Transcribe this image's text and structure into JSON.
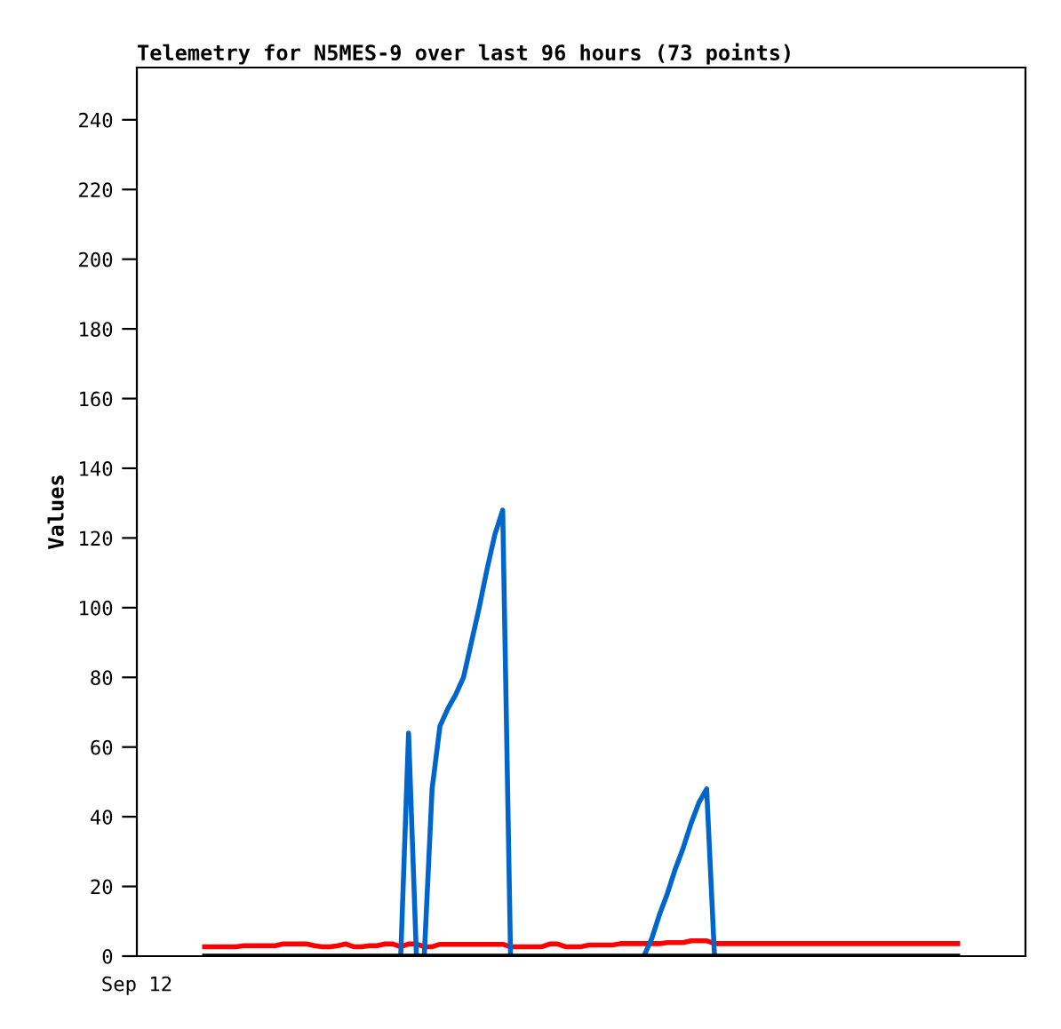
{
  "chart_data": {
    "type": "line",
    "title": "Telemetry for N5MES-9 over last 96 hours (73 points)",
    "ylabel": "Values",
    "annotations": [
      "Sep 12"
    ],
    "ylim": [
      0,
      255
    ],
    "yticks": [
      0,
      20,
      40,
      60,
      80,
      100,
      120,
      140,
      160,
      180,
      200,
      220,
      240
    ],
    "grid": false,
    "legend": false,
    "marker": "none",
    "line_style": "solid",
    "categories": [
      null,
      null,
      null,
      null,
      null,
      null,
      null,
      null,
      null,
      null,
      null,
      null,
      null,
      null,
      null,
      null,
      null,
      null,
      null,
      null,
      null,
      null,
      null,
      null,
      null,
      null,
      null,
      null,
      null,
      null,
      null,
      null,
      null,
      null,
      null,
      null,
      null,
      null,
      null,
      null,
      null,
      null,
      null,
      null,
      null,
      null,
      null,
      null,
      null,
      null,
      null,
      null,
      null,
      null,
      null,
      null,
      null,
      null,
      null,
      null,
      null,
      null,
      null,
      null,
      null,
      null,
      null,
      null,
      null,
      null,
      null,
      null,
      null,
      null,
      null,
      null,
      null,
      null,
      null,
      null,
      null,
      null,
      null,
      null,
      null,
      null,
      null,
      null,
      null,
      null,
      null,
      null,
      null,
      null,
      null,
      null,
      null
    ],
    "series": [
      {
        "color": "#ff0000",
        "values": [
          2.7,
          2.7,
          2.7,
          2.7,
          2.7,
          3.0,
          3.0,
          3.0,
          3.0,
          3.0,
          3.5,
          3.5,
          3.5,
          3.5,
          3.0,
          2.7,
          2.7,
          3.0,
          3.5,
          2.7,
          2.7,
          3.0,
          3.0,
          3.5,
          3.5,
          2.7,
          3.5,
          3.5,
          2.7,
          2.7,
          3.4,
          3.4,
          3.4,
          3.4,
          3.4,
          3.4,
          3.4,
          3.4,
          3.4,
          2.7,
          2.7,
          2.7,
          2.7,
          2.7,
          3.5,
          3.5,
          2.7,
          2.7,
          2.7,
          3.2,
          3.2,
          3.2,
          3.2,
          3.6,
          3.6,
          3.6,
          3.6,
          3.6,
          3.6,
          3.9,
          3.9,
          3.9,
          4.4,
          4.4,
          4.4,
          3.6,
          3.6,
          3.6,
          3.6,
          3.6,
          3.6,
          3.6,
          3.6,
          3.6,
          3.6,
          3.6,
          3.6,
          3.6,
          3.6,
          3.6,
          3.6,
          3.6,
          3.6,
          3.6,
          3.6,
          3.6,
          3.6,
          3.6,
          3.6,
          3.6,
          3.6,
          3.6,
          3.6,
          3.6,
          3.6,
          3.6,
          3.6
        ]
      },
      {
        "color": "#0066cc",
        "values": [
          null,
          null,
          null,
          null,
          null,
          null,
          null,
          null,
          null,
          null,
          null,
          null,
          null,
          null,
          null,
          null,
          null,
          null,
          null,
          null,
          null,
          null,
          null,
          null,
          null,
          0,
          64,
          0,
          0,
          48,
          66,
          71,
          75,
          80,
          90,
          100,
          111,
          121,
          128,
          0,
          null,
          null,
          null,
          null,
          null,
          null,
          null,
          null,
          null,
          null,
          null,
          null,
          null,
          null,
          null,
          null,
          0,
          5,
          12,
          18,
          25,
          31,
          38,
          44,
          48,
          0,
          null,
          null,
          null,
          null,
          null,
          null,
          null,
          null,
          null,
          null,
          null,
          null,
          null,
          null,
          null,
          null,
          null,
          null,
          null,
          null,
          null,
          null,
          null,
          null,
          null,
          null,
          null,
          null,
          null,
          null,
          null
        ]
      },
      {
        "color": "#000000",
        "values": [
          0,
          0,
          0,
          0,
          0,
          0,
          0,
          0,
          0,
          0,
          0,
          0,
          0,
          0,
          0,
          0,
          0,
          0,
          0,
          0,
          0,
          0,
          0,
          0,
          0,
          0,
          0,
          0,
          0,
          0,
          0,
          0,
          0,
          0,
          0,
          0,
          0,
          0,
          0,
          0,
          0,
          0,
          0,
          0,
          0,
          0,
          0,
          0,
          0,
          0,
          0,
          0,
          0,
          0,
          0,
          0,
          0,
          0,
          0,
          0,
          0,
          0,
          0,
          0,
          0,
          0,
          0,
          0,
          0,
          0,
          0,
          0,
          0,
          0,
          0,
          0,
          0,
          0,
          0,
          0,
          0,
          0,
          0,
          0,
          0,
          0,
          0,
          0,
          0,
          0,
          0,
          0,
          0,
          0,
          0,
          0,
          0
        ]
      }
    ]
  }
}
